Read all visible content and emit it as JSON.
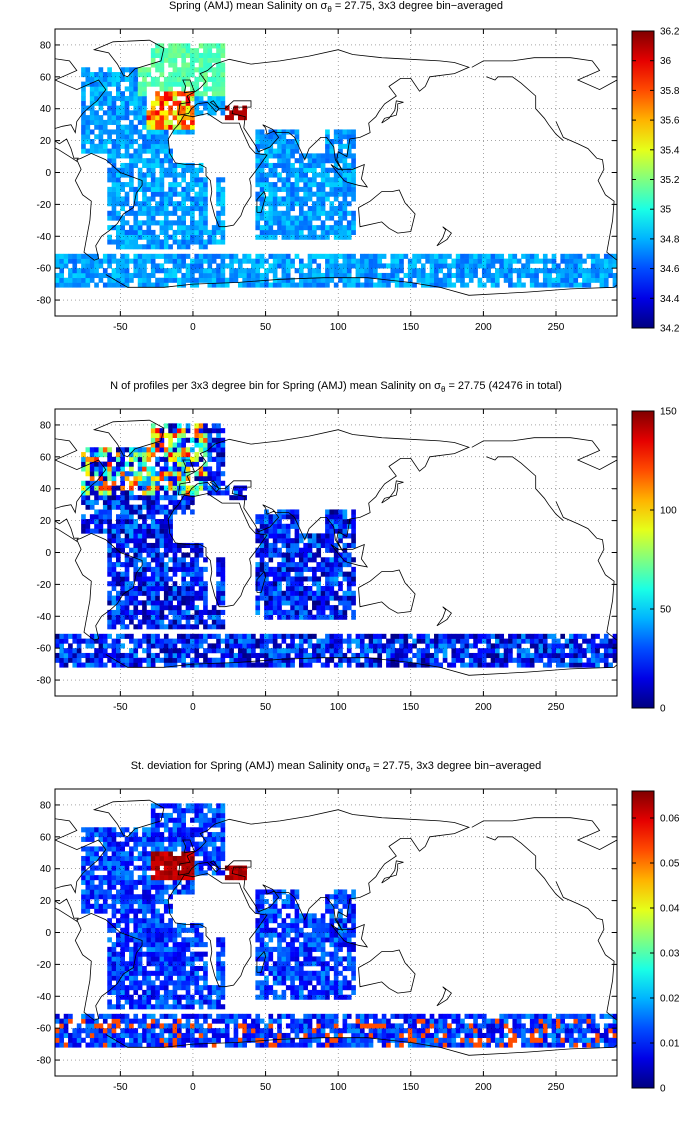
{
  "figure": {
    "panels": [
      {
        "title_pre": "Spring (AMJ) mean Salinity on σ",
        "title_sub": "θ",
        "title_post": " = 27.75, 3x3 degree bin−averaged"
      },
      {
        "title_pre": "N of profiles per 3x3 degree bin for Spring (AMJ) mean Salinity on σ",
        "title_sub": "θ",
        "title_post": " = 27.75 (42476 in total)"
      },
      {
        "title_pre": "St. deviation for Spring (AMJ) mean Salinity onσ",
        "title_sub": "θ",
        "title_post": " = 27.75, 3x3 degree bin−averaged"
      }
    ]
  },
  "chart_data": [
    {
      "type": "heatmap",
      "colormap": "jet",
      "xlim": [
        -95,
        292
      ],
      "ylim": [
        -90,
        90
      ],
      "xticks": [
        -50,
        0,
        50,
        100,
        150,
        200,
        250
      ],
      "yticks": [
        -80,
        -60,
        -40,
        -20,
        0,
        20,
        40,
        60,
        80
      ],
      "clim": [
        34.2,
        36.2
      ],
      "cticks": [
        "34.2",
        "34.4",
        "34.6",
        "34.8",
        "35",
        "35.2",
        "35.4",
        "35.6",
        "35.8",
        "36",
        "36.2"
      ],
      "cticks_values": [
        34.2,
        34.4,
        34.6,
        34.8,
        35,
        35.2,
        35.4,
        35.6,
        35.8,
        36,
        36.2
      ]
    },
    {
      "type": "heatmap",
      "colormap": "jet",
      "xlim": [
        -95,
        292
      ],
      "ylim": [
        -90,
        90
      ],
      "xticks": [
        -50,
        0,
        50,
        100,
        150,
        200,
        250
      ],
      "yticks": [
        -80,
        -60,
        -40,
        -20,
        0,
        20,
        40,
        60,
        80
      ],
      "clim": [
        0,
        150
      ],
      "cticks": [
        "0",
        "50",
        "100",
        "150"
      ],
      "cticks_values": [
        0,
        50,
        100,
        150
      ]
    },
    {
      "type": "heatmap",
      "colormap": "jet",
      "xlim": [
        -95,
        292
      ],
      "ylim": [
        -90,
        90
      ],
      "xticks": [
        -50,
        0,
        50,
        100,
        150,
        200,
        250
      ],
      "yticks": [
        -80,
        -60,
        -40,
        -20,
        0,
        20,
        40,
        60,
        80
      ],
      "clim": [
        0,
        0.066
      ],
      "cticks": [
        "0",
        "0.01",
        "0.02",
        "0.03",
        "0.04",
        "0.05",
        "0.06"
      ],
      "cticks_values": [
        0,
        0.01,
        0.02,
        0.03,
        0.04,
        0.05,
        0.06
      ]
    }
  ]
}
